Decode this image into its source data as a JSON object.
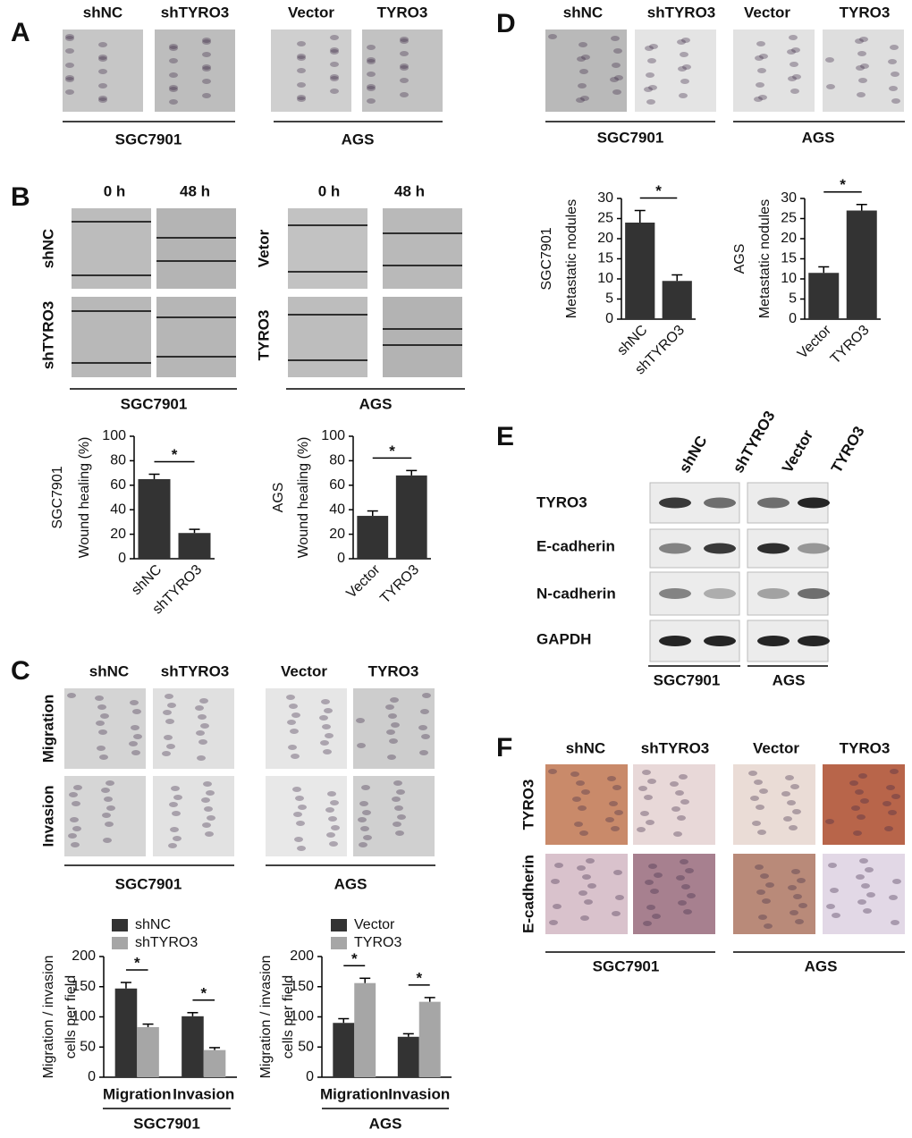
{
  "panels": {
    "A": {
      "label": "A",
      "columns": [
        "shNC",
        "shTYRO3",
        "Vector",
        "TYRO3"
      ],
      "groups": [
        "SGC7901",
        "AGS"
      ]
    },
    "B": {
      "label": "B",
      "columns": [
        "0 h",
        "48 h",
        "0 h",
        "48 h"
      ],
      "rows": [
        "shNC",
        "shTYRO3",
        "Vetor",
        "TYRO3"
      ],
      "groups": [
        "SGC7901",
        "AGS"
      ]
    },
    "C": {
      "label": "C",
      "columns": [
        "shNC",
        "shTYRO3",
        "Vector",
        "TYRO3"
      ],
      "rows": [
        "Migration",
        "Invasion"
      ],
      "groups": [
        "SGC7901",
        "AGS"
      ]
    },
    "D": {
      "label": "D",
      "columns": [
        "shNC",
        "shTYRO3",
        "Vector",
        "TYRO3"
      ],
      "groups": [
        "SGC7901",
        "AGS"
      ]
    },
    "E": {
      "label": "E",
      "columns": [
        "shNC",
        "shTYRO3",
        "Vector",
        "TYRO3"
      ],
      "rows": [
        "TYRO3",
        "E-cadherin",
        "N-cadherin",
        "GAPDH"
      ],
      "groups": [
        "SGC7901",
        "AGS"
      ]
    },
    "F": {
      "label": "F",
      "columns": [
        "shNC",
        "shTYRO3",
        "Vector",
        "TYRO3"
      ],
      "rows": [
        "TYRO3",
        "E-cadherin"
      ],
      "groups": [
        "SGC7901",
        "AGS"
      ]
    }
  },
  "chart_data": [
    {
      "type": "bar",
      "ylabel": [
        "SGC7901",
        "Wound healing (%)"
      ],
      "categories": [
        "shNC",
        "shTYRO3"
      ],
      "values": [
        65,
        21
      ],
      "errors": [
        4,
        3
      ],
      "color": "#333333",
      "ylim": [
        0,
        100
      ],
      "yticks": [
        0,
        20,
        40,
        60,
        80,
        100
      ],
      "annotations": [
        "*"
      ]
    },
    {
      "type": "bar",
      "ylabel": [
        "AGS",
        "Wound healing (%)"
      ],
      "categories": [
        "Vector",
        "TYRO3"
      ],
      "values": [
        35,
        68
      ],
      "errors": [
        4,
        4
      ],
      "color": "#333333",
      "ylim": [
        0,
        100
      ],
      "yticks": [
        0,
        20,
        40,
        60,
        80,
        100
      ],
      "annotations": [
        "*"
      ]
    },
    {
      "type": "grouped-bar",
      "ylabel": [
        "Migration / invasion",
        "cells per field"
      ],
      "categories": [
        "Migration",
        "Invasion"
      ],
      "series": [
        {
          "name": "shNC",
          "color": "#333333",
          "values": [
            147,
            101
          ],
          "errors": [
            10,
            6
          ]
        },
        {
          "name": "shTYRO3",
          "color": "#a6a6a6",
          "values": [
            83,
            45
          ],
          "errors": [
            5,
            4
          ]
        }
      ],
      "ylim": [
        0,
        200
      ],
      "yticks": [
        0,
        50,
        100,
        150,
        200
      ],
      "xlabel": "SGC7901",
      "annotations": [
        "*",
        "*"
      ]
    },
    {
      "type": "grouped-bar",
      "ylabel": [
        "Migration / invasion",
        "cells per field"
      ],
      "categories": [
        "Migration",
        "Invasion"
      ],
      "series": [
        {
          "name": "Vector",
          "color": "#333333",
          "values": [
            90,
            67
          ],
          "errors": [
            7,
            5
          ]
        },
        {
          "name": "TYRO3",
          "color": "#a6a6a6",
          "values": [
            156,
            125
          ],
          "errors": [
            8,
            7
          ]
        }
      ],
      "ylim": [
        0,
        200
      ],
      "yticks": [
        0,
        50,
        100,
        150,
        200
      ],
      "xlabel": "AGS",
      "annotations": [
        "*",
        "*"
      ]
    },
    {
      "type": "bar",
      "ylabel": [
        "SGC7901",
        "Metastatic nodules"
      ],
      "categories": [
        "shNC",
        "shTYRO3"
      ],
      "values": [
        24,
        9.5
      ],
      "errors": [
        3,
        1.5
      ],
      "color": "#333333",
      "ylim": [
        0,
        30
      ],
      "yticks": [
        0,
        5,
        10,
        15,
        20,
        25,
        30
      ],
      "annotations": [
        "*"
      ]
    },
    {
      "type": "bar",
      "ylabel": [
        "AGS",
        "Metastatic nodules"
      ],
      "categories": [
        "Vector",
        "TYRO3"
      ],
      "values": [
        11.5,
        27
      ],
      "errors": [
        1.5,
        1.5
      ],
      "color": "#333333",
      "ylim": [
        0,
        30
      ],
      "yticks": [
        0,
        5,
        10,
        15,
        20,
        25,
        30
      ],
      "annotations": [
        "*"
      ]
    }
  ]
}
